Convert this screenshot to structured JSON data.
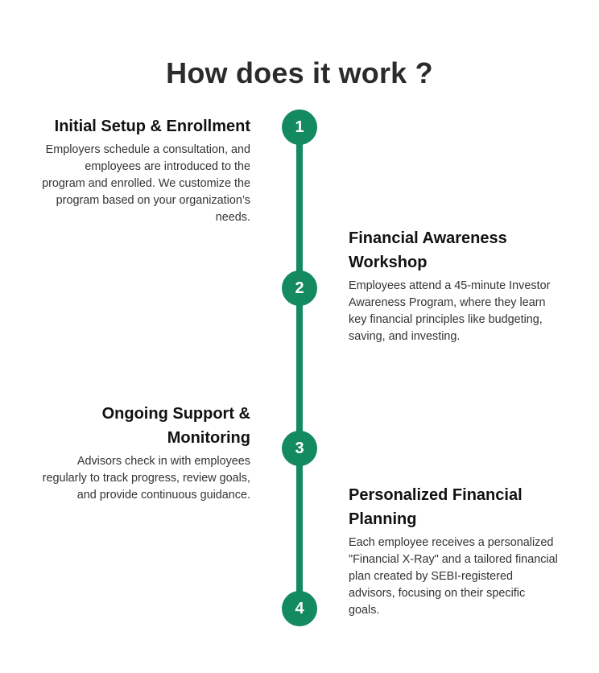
{
  "page": {
    "title": "How does it work ?"
  },
  "steps": [
    {
      "number": "1",
      "title": "Initial Setup & Enrollment",
      "description": "Employers schedule a consultation, and employees are introduced to the program and enrolled. We customize the program based on your organization’s needs."
    },
    {
      "number": "2",
      "title": "Financial Awareness Workshop",
      "description": "Employees attend a 45-minute Investor Awareness Program, where they learn key financial principles like budgeting, saving, and investing."
    },
    {
      "number": "3",
      "title": "Ongoing Support & Monitoring",
      "description": "Advisors check in with employees regularly to track progress, review goals, and provide continuous guidance."
    },
    {
      "number": "4",
      "title": "Personalized Financial Planning",
      "description": "Each employee receives a personalized \"Financial X-Ray\" and a tailored financial plan created by SEBI-registered advisors, focusing on their specific goals."
    }
  ],
  "colors": {
    "accent": "#138a60",
    "title_text": "#2b2b2b",
    "body_text": "#333333"
  }
}
